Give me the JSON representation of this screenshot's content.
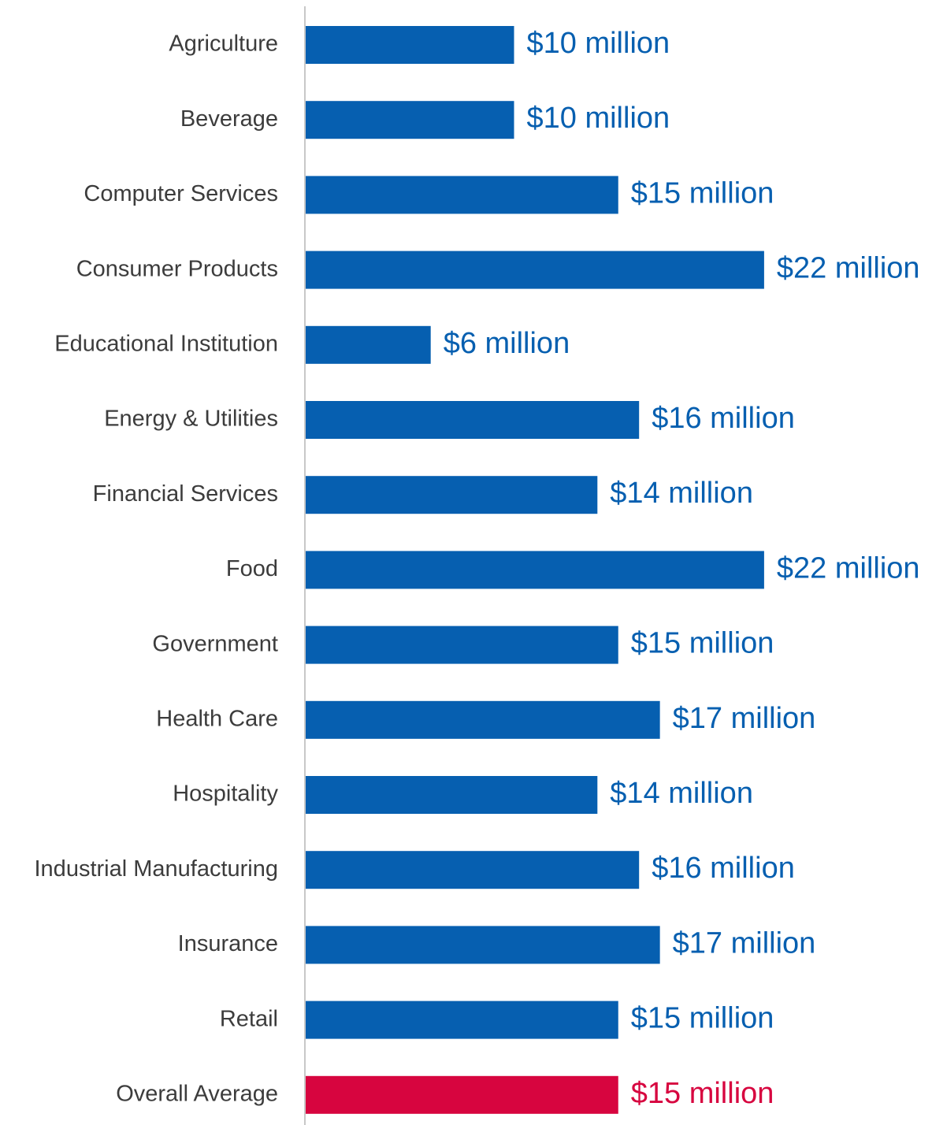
{
  "chart_data": {
    "type": "bar",
    "orientation": "horizontal",
    "categories": [
      "Agriculture",
      "Beverage",
      "Computer Services",
      "Consumer Products",
      "Educational Institution",
      "Energy & Utilities",
      "Financial Services",
      "Food",
      "Government",
      "Health Care",
      "Hospitality",
      "Industrial Manufacturing",
      "Insurance",
      "Retail",
      "Overall Average"
    ],
    "values": [
      10,
      10,
      15,
      22,
      6,
      16,
      14,
      22,
      15,
      17,
      14,
      16,
      17,
      15,
      15
    ],
    "value_labels": [
      "$10 million",
      "$10 million",
      "$15 million",
      "$22 million",
      "$6 million",
      "$16 million",
      "$14 million",
      "$22 million",
      "$15 million",
      "$17 million",
      "$14 million",
      "$16 million",
      "$17 million",
      "$15 million",
      "$15 million"
    ],
    "highlight_category": "Overall Average",
    "colors": {
      "bar": "#065fb0",
      "highlight": "#d7053f",
      "axis": "#c8c8c8",
      "category_text": "#3c3c3c"
    },
    "title": "",
    "xlabel": "",
    "ylabel": "",
    "xlim": [
      0,
      22
    ],
    "grid": false,
    "legend": "none"
  }
}
